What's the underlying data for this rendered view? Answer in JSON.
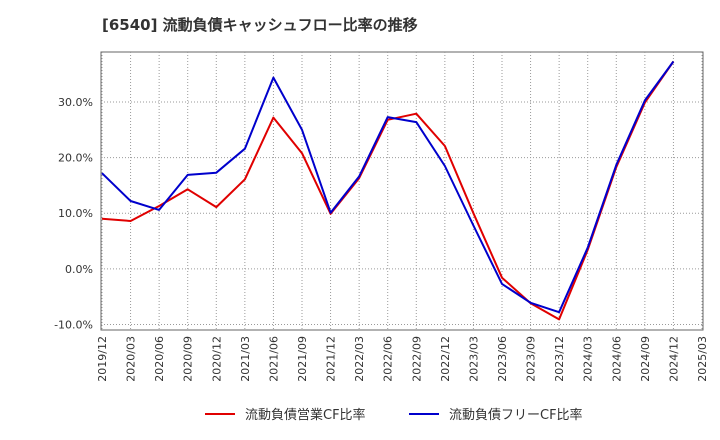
{
  "chart_data": {
    "type": "line",
    "title": "[6540]  流動負債キャッシュフロー比率の推移",
    "xlabel": "",
    "ylabel": "",
    "ylim": [
      -11,
      39
    ],
    "yticks": [
      "-10.0%",
      "0.0%",
      "10.0%",
      "20.0%",
      "30.0%"
    ],
    "ytick_values": [
      -10,
      0,
      10,
      20,
      30
    ],
    "categories": [
      "2019/12",
      "2020/03",
      "2020/06",
      "2020/09",
      "2020/12",
      "2021/03",
      "2021/06",
      "2021/09",
      "2021/12",
      "2022/03",
      "2022/06",
      "2022/09",
      "2022/12",
      "2023/03",
      "2023/06",
      "2023/09",
      "2023/12",
      "2024/03",
      "2024/06",
      "2024/09",
      "2024/12",
      "2025/03"
    ],
    "grid": true,
    "legend_position": "bottom",
    "series": [
      {
        "name": "流動負債営業CF比率",
        "color": "#e00000",
        "values": [
          9.0,
          8.6,
          11.3,
          14.3,
          11.1,
          16.1,
          27.2,
          20.8,
          9.9,
          16.3,
          26.8,
          27.9,
          22.1,
          10.0,
          -1.6,
          -6.2,
          -9.1,
          3.4,
          18.3,
          29.9,
          37.3,
          null
        ]
      },
      {
        "name": "流動負債フリーCF比率",
        "color": "#0000cc",
        "values": [
          17.2,
          12.2,
          10.6,
          16.9,
          17.3,
          21.6,
          34.4,
          25.0,
          10.1,
          16.6,
          27.3,
          26.4,
          18.5,
          7.8,
          -2.7,
          -6.1,
          -7.8,
          3.8,
          18.7,
          30.3,
          37.3,
          null
        ]
      }
    ]
  }
}
